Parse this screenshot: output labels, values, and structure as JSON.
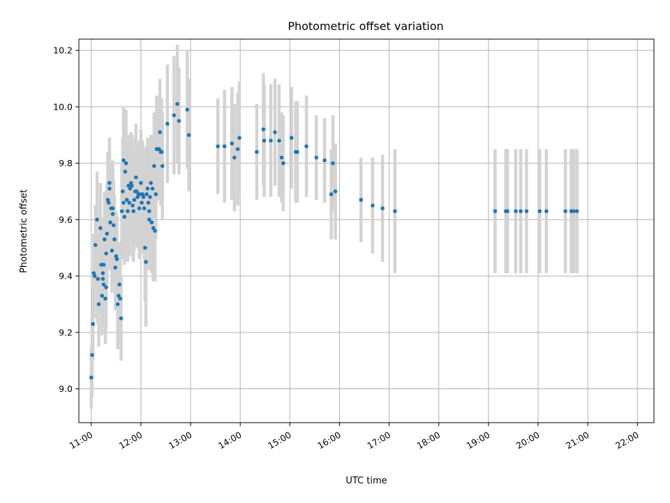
{
  "chart_data": {
    "type": "scatter",
    "title": "Photometric offset variation",
    "xlabel": "UTC time",
    "ylabel": "Photometric offset",
    "xlim": [
      "10:45",
      "22:20"
    ],
    "ylim": [
      8.88,
      10.24
    ],
    "x_ticks": [
      "11:00",
      "12:00",
      "13:00",
      "14:00",
      "15:00",
      "16:00",
      "17:00",
      "18:00",
      "19:00",
      "20:00",
      "21:00",
      "22:00"
    ],
    "y_ticks": [
      9.0,
      9.2,
      9.4,
      9.6,
      9.8,
      10.0,
      10.2
    ],
    "grid": true,
    "colors": {
      "points": "#1f77b4",
      "error_bars": "#d3d3d3",
      "grid": "#b0b0b0"
    },
    "points": [
      {
        "t": "11:00",
        "y": 9.04,
        "err": 0.11
      },
      {
        "t": "11:01",
        "y": 9.12,
        "err": 0.15
      },
      {
        "t": "11:02",
        "y": 9.23,
        "err": 0.13
      },
      {
        "t": "11:03",
        "y": 9.41,
        "err": 0.14
      },
      {
        "t": "11:04",
        "y": 9.4,
        "err": 0.15
      },
      {
        "t": "11:05",
        "y": 9.51,
        "err": 0.14
      },
      {
        "t": "11:07",
        "y": 9.6,
        "err": 0.17
      },
      {
        "t": "11:08",
        "y": 9.39,
        "err": 0.16
      },
      {
        "t": "11:09",
        "y": 9.3,
        "err": 0.15
      },
      {
        "t": "11:11",
        "y": 9.57,
        "err": 0.16
      },
      {
        "t": "11:12",
        "y": 9.44,
        "err": 0.17
      },
      {
        "t": "11:13",
        "y": 9.33,
        "err": 0.14
      },
      {
        "t": "11:14",
        "y": 9.41,
        "err": 0.15
      },
      {
        "t": "11:14",
        "y": 9.39,
        "err": 0.16
      },
      {
        "t": "11:15",
        "y": 9.37,
        "err": 0.15
      },
      {
        "t": "11:15",
        "y": 9.44,
        "err": 0.14
      },
      {
        "t": "11:16",
        "y": 9.53,
        "err": 0.17
      },
      {
        "t": "11:17",
        "y": 9.32,
        "err": 0.16
      },
      {
        "t": "11:18",
        "y": 9.48,
        "err": 0.16
      },
      {
        "t": "11:18",
        "y": 9.36,
        "err": 0.15
      },
      {
        "t": "11:19",
        "y": 9.55,
        "err": 0.18
      },
      {
        "t": "11:20",
        "y": 9.67,
        "err": 0.17
      },
      {
        "t": "11:21",
        "y": 9.66,
        "err": 0.16
      },
      {
        "t": "11:22",
        "y": 9.73,
        "err": 0.16
      },
      {
        "t": "11:22",
        "y": 9.71,
        "err": 0.18
      },
      {
        "t": "11:23",
        "y": 9.59,
        "err": 0.17
      },
      {
        "t": "11:24",
        "y": 9.64,
        "err": 0.16
      },
      {
        "t": "11:25",
        "y": 9.49,
        "err": 0.15
      },
      {
        "t": "11:26",
        "y": 9.64,
        "err": 0.17
      },
      {
        "t": "11:26",
        "y": 9.62,
        "err": 0.17
      },
      {
        "t": "11:27",
        "y": 9.58,
        "err": 0.16
      },
      {
        "t": "11:28",
        "y": 9.53,
        "err": 0.16
      },
      {
        "t": "11:29",
        "y": 9.43,
        "err": 0.15
      },
      {
        "t": "11:30",
        "y": 9.47,
        "err": 0.16
      },
      {
        "t": "11:31",
        "y": 9.46,
        "err": 0.15
      },
      {
        "t": "11:32",
        "y": 9.3,
        "err": 0.16
      },
      {
        "t": "11:33",
        "y": 9.33,
        "err": 0.15
      },
      {
        "t": "11:34",
        "y": 9.37,
        "err": 0.15
      },
      {
        "t": "11:35",
        "y": 9.32,
        "err": 0.16
      },
      {
        "t": "11:36",
        "y": 9.25,
        "err": 0.15
      },
      {
        "t": "11:37",
        "y": 9.63,
        "err": 0.17
      },
      {
        "t": "11:38",
        "y": 9.7,
        "err": 0.19
      },
      {
        "t": "11:39",
        "y": 9.81,
        "err": 0.19
      },
      {
        "t": "11:39",
        "y": 9.66,
        "err": 0.18
      },
      {
        "t": "11:40",
        "y": 9.61,
        "err": 0.17
      },
      {
        "t": "11:41",
        "y": 9.77,
        "err": 0.19
      },
      {
        "t": "11:42",
        "y": 9.8,
        "err": 0.19
      },
      {
        "t": "11:43",
        "y": 9.67,
        "err": 0.19
      },
      {
        "t": "11:44",
        "y": 9.63,
        "err": 0.18
      },
      {
        "t": "11:45",
        "y": 9.72,
        "err": 0.18
      },
      {
        "t": "11:46",
        "y": 9.66,
        "err": 0.19
      },
      {
        "t": "11:47",
        "y": 9.71,
        "err": 0.19
      },
      {
        "t": "11:48",
        "y": 9.73,
        "err": 0.18
      },
      {
        "t": "11:49",
        "y": 9.72,
        "err": 0.18
      },
      {
        "t": "11:50",
        "y": 9.65,
        "err": 0.19
      },
      {
        "t": "11:51",
        "y": 9.63,
        "err": 0.18
      },
      {
        "t": "11:52",
        "y": 9.67,
        "err": 0.18
      },
      {
        "t": "11:53",
        "y": 9.7,
        "err": 0.19
      },
      {
        "t": "11:54",
        "y": 9.75,
        "err": 0.19
      },
      {
        "t": "11:55",
        "y": 9.7,
        "err": 0.18
      },
      {
        "t": "11:56",
        "y": 9.68,
        "err": 0.18
      },
      {
        "t": "11:57",
        "y": 9.69,
        "err": 0.19
      },
      {
        "t": "11:58",
        "y": 9.64,
        "err": 0.18
      },
      {
        "t": "11:59",
        "y": 9.69,
        "err": 0.19
      },
      {
        "t": "12:00",
        "y": 9.73,
        "err": 0.19
      },
      {
        "t": "12:01",
        "y": 9.66,
        "err": 0.18
      },
      {
        "t": "12:02",
        "y": 9.69,
        "err": 0.19
      },
      {
        "t": "12:03",
        "y": 9.68,
        "err": 0.18
      },
      {
        "t": "12:04",
        "y": 9.64,
        "err": 0.18
      },
      {
        "t": "12:05",
        "y": 9.5,
        "err": 0.19
      },
      {
        "t": "12:06",
        "y": 9.45,
        "err": 0.23
      },
      {
        "t": "12:07",
        "y": 9.69,
        "err": 0.17
      },
      {
        "t": "12:08",
        "y": 9.71,
        "err": 0.18
      },
      {
        "t": "12:09",
        "y": 9.66,
        "err": 0.17
      },
      {
        "t": "12:10",
        "y": 9.63,
        "err": 0.19
      },
      {
        "t": "12:10",
        "y": 9.6,
        "err": 0.18
      },
      {
        "t": "12:11",
        "y": 9.68,
        "err": 0.18
      },
      {
        "t": "12:12",
        "y": 9.73,
        "err": 0.17
      },
      {
        "t": "12:13",
        "y": 9.59,
        "err": 0.18
      },
      {
        "t": "12:14",
        "y": 9.71,
        "err": 0.18
      },
      {
        "t": "12:15",
        "y": 9.57,
        "err": 0.19
      },
      {
        "t": "12:16",
        "y": 9.79,
        "err": 0.19
      },
      {
        "t": "12:17",
        "y": 9.56,
        "err": 0.18
      },
      {
        "t": "12:18",
        "y": 9.69,
        "err": 0.16
      },
      {
        "t": "12:19",
        "y": 9.85,
        "err": 0.19
      },
      {
        "t": "12:20",
        "y": 9.85,
        "err": 0.18
      },
      {
        "t": "12:22",
        "y": 9.85,
        "err": 0.18
      },
      {
        "t": "12:23",
        "y": 9.91,
        "err": 0.19
      },
      {
        "t": "12:24",
        "y": 9.84,
        "err": 0.19
      },
      {
        "t": "12:25",
        "y": 9.84,
        "err": 0.19
      },
      {
        "t": "12:26",
        "y": 9.79,
        "err": 0.19
      },
      {
        "t": "12:32",
        "y": 9.94,
        "err": 0.21
      },
      {
        "t": "12:40",
        "y": 9.97,
        "err": 0.21
      },
      {
        "t": "12:44",
        "y": 10.01,
        "err": 0.21
      },
      {
        "t": "12:46",
        "y": 9.95,
        "err": 0.19
      },
      {
        "t": "12:56",
        "y": 9.99,
        "err": 0.21
      },
      {
        "t": "12:58",
        "y": 9.9,
        "err": 0.2
      },
      {
        "t": "13:33",
        "y": 9.86,
        "err": 0.17
      },
      {
        "t": "13:41",
        "y": 9.86,
        "err": 0.2
      },
      {
        "t": "13:50",
        "y": 9.87,
        "err": 0.2
      },
      {
        "t": "13:53",
        "y": 9.82,
        "err": 0.19
      },
      {
        "t": "13:57",
        "y": 9.85,
        "err": 0.2
      },
      {
        "t": "13:59",
        "y": 9.89,
        "err": 0.2
      },
      {
        "t": "14:20",
        "y": 9.84,
        "err": 0.17
      },
      {
        "t": "14:28",
        "y": 9.92,
        "err": 0.2
      },
      {
        "t": "14:29",
        "y": 9.88,
        "err": 0.2
      },
      {
        "t": "14:37",
        "y": 9.88,
        "err": 0.2
      },
      {
        "t": "14:42",
        "y": 9.91,
        "err": 0.19
      },
      {
        "t": "14:47",
        "y": 9.88,
        "err": 0.2
      },
      {
        "t": "14:50",
        "y": 9.82,
        "err": 0.16
      },
      {
        "t": "14:52",
        "y": 9.8,
        "err": 0.17
      },
      {
        "t": "15:02",
        "y": 9.89,
        "err": 0.18
      },
      {
        "t": "15:07",
        "y": 9.84,
        "err": 0.18
      },
      {
        "t": "15:09",
        "y": 9.84,
        "err": 0.18
      },
      {
        "t": "15:20",
        "y": 9.86,
        "err": 0.18
      },
      {
        "t": "15:32",
        "y": 9.82,
        "err": 0.15
      },
      {
        "t": "15:42",
        "y": 9.81,
        "err": 0.15
      },
      {
        "t": "15:50",
        "y": 9.69,
        "err": 0.16
      },
      {
        "t": "15:52",
        "y": 9.8,
        "err": 0.17
      },
      {
        "t": "15:55",
        "y": 9.7,
        "err": 0.17
      },
      {
        "t": "16:26",
        "y": 9.67,
        "err": 0.15
      },
      {
        "t": "16:40",
        "y": 9.65,
        "err": 0.17
      },
      {
        "t": "16:52",
        "y": 9.64,
        "err": 0.19
      },
      {
        "t": "17:07",
        "y": 9.63,
        "err": 0.22
      },
      {
        "t": "19:08",
        "y": 9.63,
        "err": 0.22
      },
      {
        "t": "19:21",
        "y": 9.63,
        "err": 0.22
      },
      {
        "t": "19:23",
        "y": 9.63,
        "err": 0.22
      },
      {
        "t": "19:33",
        "y": 9.63,
        "err": 0.22
      },
      {
        "t": "19:39",
        "y": 9.63,
        "err": 0.22
      },
      {
        "t": "19:46",
        "y": 9.63,
        "err": 0.22
      },
      {
        "t": "20:02",
        "y": 9.63,
        "err": 0.22
      },
      {
        "t": "20:10",
        "y": 9.63,
        "err": 0.22
      },
      {
        "t": "20:33",
        "y": 9.63,
        "err": 0.22
      },
      {
        "t": "20:40",
        "y": 9.63,
        "err": 0.22
      },
      {
        "t": "20:43",
        "y": 9.63,
        "err": 0.22
      },
      {
        "t": "20:47",
        "y": 9.63,
        "err": 0.22
      }
    ]
  }
}
